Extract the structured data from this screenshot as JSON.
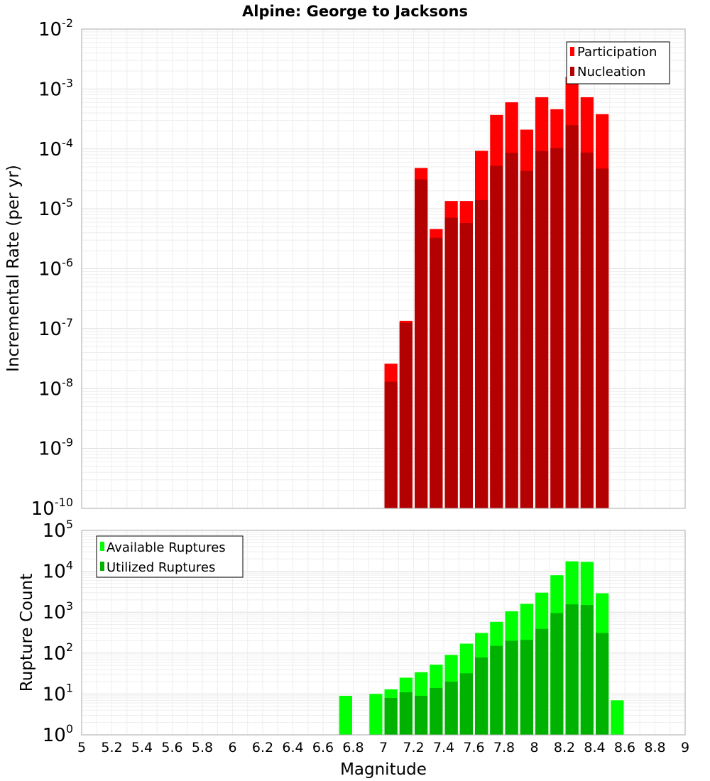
{
  "chart_data": [
    {
      "type": "bar",
      "title": "Alpine: George to Jacksons",
      "ylabel": "Incremental Rate (per yr)",
      "xlabel": "",
      "xlim": [
        5,
        9
      ],
      "ylim": [
        1e-10,
        0.01
      ],
      "yscale": "log",
      "y_tick_exponents": [
        -10,
        -9,
        -8,
        -7,
        -6,
        -5,
        -4,
        -3,
        -2
      ],
      "grid": true,
      "legend_position": "top-right",
      "bin_width": 0.1,
      "x": [
        7.05,
        7.15,
        7.25,
        7.35,
        7.45,
        7.55,
        7.65,
        7.75,
        7.85,
        7.95,
        8.05,
        8.15,
        8.25,
        8.35,
        8.45
      ],
      "series": [
        {
          "name": "Participation",
          "color": "#ff0000",
          "values": [
            2.6e-08,
            1.35e-07,
            4.8e-05,
            4.6e-06,
            1.35e-05,
            1.35e-05,
            9.3e-05,
            0.00037,
            0.0006,
            0.00021,
            0.00073,
            0.00046,
            0.0016,
            0.00073,
            0.00038
          ]
        },
        {
          "name": "Nucleation",
          "color": "#b30000",
          "values": [
            1.3e-08,
            1.25e-07,
            3.1e-05,
            3.3e-06,
            7.1e-06,
            5.8e-06,
            1.4e-05,
            5.2e-05,
            8.6e-05,
            4.3e-05,
            9.2e-05,
            0.000103,
            0.00025,
            8.7e-05,
            4.7e-05
          ]
        }
      ]
    },
    {
      "type": "bar",
      "title": "",
      "ylabel": "Rupture Count",
      "xlabel": "Magnitude",
      "xlim": [
        5,
        9
      ],
      "ylim": [
        1,
        100000.0
      ],
      "yscale": "log",
      "y_tick_exponents": [
        0,
        1,
        2,
        3,
        4,
        5
      ],
      "x_ticks": [
        "5",
        "5.2",
        "5.4",
        "5.6",
        "5.8",
        "6",
        "6.2",
        "6.4",
        "6.6",
        "6.8",
        "7",
        "7.2",
        "7.4",
        "7.6",
        "7.8",
        "8",
        "8.2",
        "8.4",
        "8.6",
        "8.8",
        "9"
      ],
      "grid": true,
      "legend_position": "top-left",
      "bin_width": 0.1,
      "series": [
        {
          "name": "Available Ruptures",
          "color": "#00ff00",
          "x": [
            6.75,
            6.95,
            7.05,
            7.15,
            7.25,
            7.35,
            7.45,
            7.55,
            7.65,
            7.75,
            7.85,
            7.95,
            8.05,
            8.15,
            8.25,
            8.35,
            8.45,
            8.55
          ],
          "values": [
            9,
            10,
            13,
            25,
            34,
            52,
            90,
            170,
            310,
            580,
            1050,
            1600,
            3000,
            8000,
            17500,
            17000,
            2900,
            7
          ]
        },
        {
          "name": "Utilized Ruptures",
          "color": "#00b200",
          "x": [
            7.05,
            7.15,
            7.25,
            7.35,
            7.45,
            7.55,
            7.65,
            7.75,
            7.85,
            7.95,
            8.05,
            8.15,
            8.25,
            8.35,
            8.45
          ],
          "values": [
            8,
            11,
            9,
            14,
            20,
            32,
            78,
            150,
            200,
            210,
            390,
            950,
            1550,
            1500,
            310
          ]
        }
      ]
    }
  ]
}
